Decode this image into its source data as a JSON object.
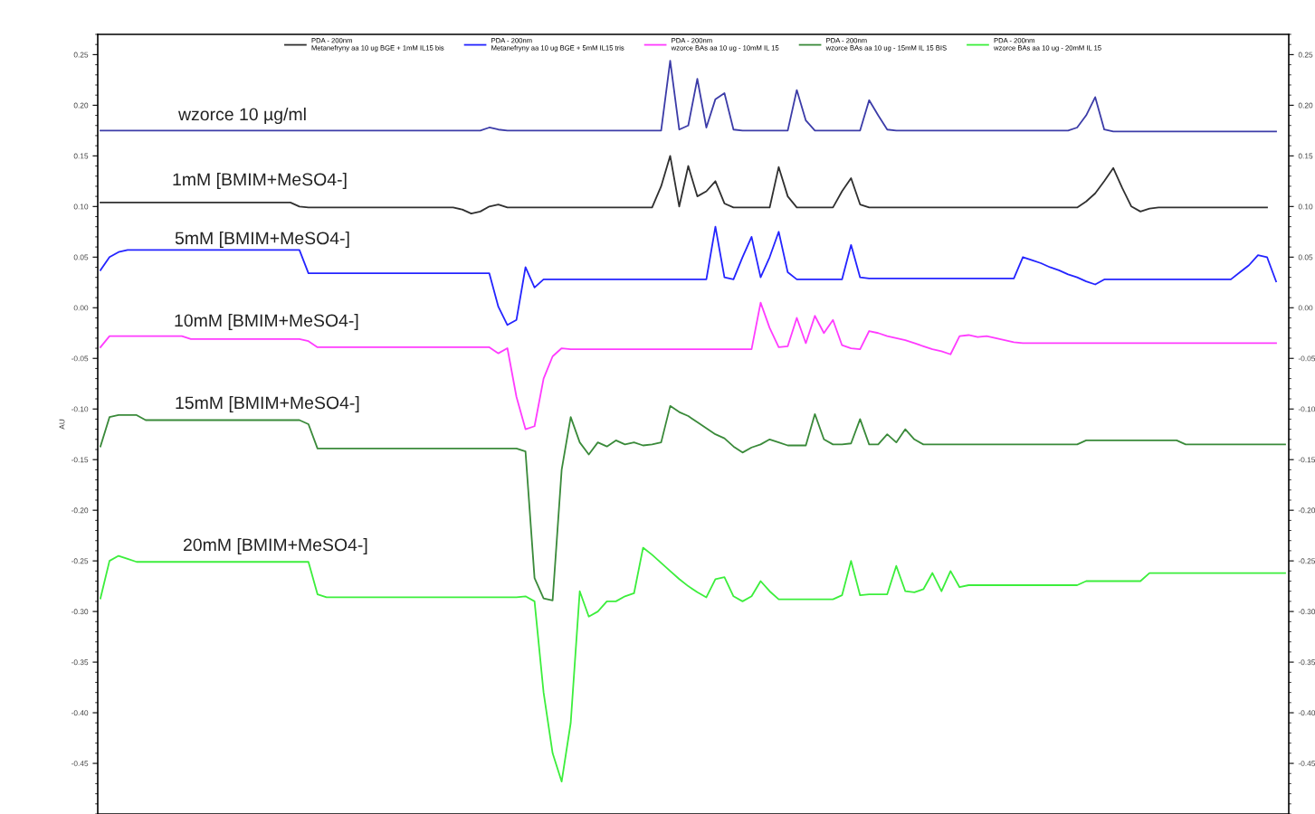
{
  "chart_data": {
    "type": "line",
    "ylabel": "AU",
    "legend": "top",
    "grid": false,
    "marker": "none",
    "line_style": "solid",
    "categories": [
      null,
      null,
      null,
      null,
      null,
      null,
      null,
      null,
      null,
      null,
      null,
      null,
      null,
      null,
      null,
      null,
      null,
      null,
      null,
      null,
      null,
      null,
      null,
      null,
      null,
      null,
      null,
      null,
      null,
      null,
      null,
      null,
      null,
      null,
      null,
      null,
      null,
      null,
      null,
      null,
      null,
      null,
      null,
      null,
      null,
      null,
      null,
      null,
      null,
      null,
      null,
      null,
      null,
      null,
      null,
      null,
      null,
      null,
      null,
      null,
      null,
      null,
      null,
      null,
      null,
      null,
      null,
      null,
      null,
      null,
      null,
      null,
      null,
      null,
      null,
      null,
      null,
      null,
      null,
      null,
      null,
      null,
      null,
      null,
      null,
      null,
      null,
      null,
      null,
      null,
      null,
      null,
      null,
      null,
      null,
      null,
      null,
      null,
      null,
      null,
      null,
      null,
      null,
      null,
      null,
      null,
      null,
      null,
      null,
      null,
      null,
      null,
      null,
      null,
      null,
      null,
      null,
      null,
      null,
      null,
      null,
      null,
      null,
      null,
      null,
      null,
      null,
      null,
      null,
      null,
      null,
      null
    ],
    "ylim": [
      -0.5,
      0.27
    ],
    "yticks": [
      {
        "value": -0.45,
        "label": "-0.45"
      },
      {
        "value": -0.4,
        "label": "-0.40"
      },
      {
        "value": -0.35,
        "label": "-0.35"
      },
      {
        "value": -0.3,
        "label": "-0.30"
      },
      {
        "value": -0.25,
        "label": "-0.25"
      },
      {
        "value": -0.2,
        "label": "-0.20"
      },
      {
        "value": -0.15,
        "label": "-0.15"
      },
      {
        "value": -0.1,
        "label": "-0.10"
      },
      {
        "value": -0.05,
        "label": "-0.05"
      },
      {
        "value": 0,
        "label": "0.00"
      },
      {
        "value": 0.05,
        "label": "0.05"
      },
      {
        "value": 0.1,
        "label": "0.10"
      },
      {
        "value": 0.15,
        "label": "0.15"
      },
      {
        "value": 0.2,
        "label": "0.20"
      },
      {
        "value": 0.25,
        "label": "0.25"
      }
    ],
    "y2lim": [
      -0.5,
      0.27
    ],
    "y2ticks": [
      {
        "value": -0.45,
        "label": "-0.45"
      },
      {
        "value": -0.4,
        "label": "-0.40"
      },
      {
        "value": -0.35,
        "label": "-0.35"
      },
      {
        "value": -0.3,
        "label": "-0.30"
      },
      {
        "value": -0.25,
        "label": "-0.25"
      },
      {
        "value": -0.2,
        "label": "-0.20"
      },
      {
        "value": -0.15,
        "label": "-0.15"
      },
      {
        "value": -0.1,
        "label": "-0.10"
      },
      {
        "value": -0.05,
        "label": "-0.05"
      },
      {
        "value": 0,
        "label": "0.00"
      },
      {
        "value": 0.05,
        "label": "0.05"
      },
      {
        "value": 0.1,
        "label": "0.10"
      },
      {
        "value": 0.15,
        "label": "0.15"
      },
      {
        "value": 0.2,
        "label": "0.20"
      },
      {
        "value": 0.25,
        "label": "0.25"
      }
    ],
    "annotations": [
      "wzorce 10 µg/ml",
      "1mM [BMIM+MeSO4-]",
      "5mM [BMIM+MeSO4-]",
      "10mM [BMIM+MeSO4-]",
      "15mM [BMIM+MeSO4-]",
      "20mM [BMIM+MeSO4-]"
    ],
    "series": [
      {
        "color": "#3c3ca8",
        "values": [
          0.175,
          0.175,
          0.175,
          0.175,
          0.175,
          0.175,
          0.175,
          0.175,
          0.175,
          0.175,
          0.175,
          0.175,
          0.175,
          0.175,
          0.175,
          0.175,
          0.175,
          0.175,
          0.175,
          0.175,
          0.175,
          0.175,
          0.175,
          0.175,
          0.175,
          0.175,
          0.175,
          0.175,
          0.175,
          0.175,
          0.175,
          0.175,
          0.175,
          0.175,
          0.175,
          0.175,
          0.175,
          0.175,
          0.175,
          0.175,
          0.175,
          0.175,
          0.175,
          0.178,
          0.176,
          0.175,
          0.175,
          0.175,
          0.175,
          0.175,
          0.175,
          0.175,
          0.175,
          0.175,
          0.175,
          0.175,
          0.175,
          0.175,
          0.175,
          0.175,
          0.175,
          0.175,
          0.175,
          0.244,
          0.176,
          0.18,
          0.226,
          0.178,
          0.206,
          0.212,
          0.176,
          0.175,
          0.175,
          0.175,
          0.175,
          0.175,
          0.175,
          0.215,
          0.185,
          0.175,
          0.175,
          0.175,
          0.175,
          0.175,
          0.175,
          0.205,
          0.19,
          0.176,
          0.175,
          0.175,
          0.175,
          0.175,
          0.175,
          0.175,
          0.175,
          0.175,
          0.175,
          0.175,
          0.175,
          0.175,
          0.175,
          0.175,
          0.175,
          0.175,
          0.175,
          0.175,
          0.175,
          0.175,
          0.178,
          0.19,
          0.208,
          0.176,
          0.174,
          0.174,
          0.174,
          0.174,
          0.174,
          0.174,
          0.174,
          0.174,
          0.174,
          0.174,
          0.174,
          0.174,
          0.174,
          0.174,
          0.174,
          0.174,
          0.174,
          0.174,
          0.174,
          null
        ]
      },
      {
        "name": "PDA - 200nm\nMetanefryny aa 10 ug BGE + 1mM IL15 bis",
        "color": "#303030",
        "values": [
          0.104,
          0.104,
          0.104,
          0.104,
          0.104,
          0.104,
          0.104,
          0.104,
          0.104,
          0.104,
          0.104,
          0.104,
          0.104,
          0.104,
          0.104,
          0.104,
          0.104,
          0.104,
          0.104,
          0.104,
          0.104,
          0.104,
          0.1,
          0.099,
          0.099,
          0.099,
          0.099,
          0.099,
          0.099,
          0.099,
          0.099,
          0.099,
          0.099,
          0.099,
          0.099,
          0.099,
          0.099,
          0.099,
          0.099,
          0.099,
          0.097,
          0.093,
          0.095,
          0.1,
          0.102,
          0.099,
          0.099,
          0.099,
          0.099,
          0.099,
          0.099,
          0.099,
          0.099,
          0.099,
          0.099,
          0.099,
          0.099,
          0.099,
          0.099,
          0.099,
          0.099,
          0.099,
          0.12,
          0.15,
          0.1,
          0.14,
          0.11,
          0.115,
          0.125,
          0.103,
          0.099,
          0.099,
          0.099,
          0.099,
          0.099,
          0.139,
          0.11,
          0.099,
          0.099,
          0.099,
          0.099,
          0.099,
          0.115,
          0.128,
          0.102,
          0.099,
          0.099,
          0.099,
          0.099,
          0.099,
          0.099,
          0.099,
          0.099,
          0.099,
          0.099,
          0.099,
          0.099,
          0.099,
          0.099,
          0.099,
          0.099,
          0.099,
          0.099,
          0.099,
          0.099,
          0.099,
          0.099,
          0.099,
          0.099,
          0.105,
          0.113,
          0.125,
          0.138,
          0.118,
          0.1,
          0.095,
          0.098,
          0.099,
          0.099,
          0.099,
          0.099,
          0.099,
          0.099,
          0.099,
          0.099,
          0.099,
          0.099,
          0.099,
          0.099,
          0.099,
          null,
          null
        ]
      },
      {
        "name": "PDA - 200nm\nMetanefryny aa 10 ug BGE + 5mM IL15 tris",
        "color": "#2424ff",
        "values": [
          0.037,
          0.05,
          0.055,
          0.057,
          0.057,
          0.057,
          0.057,
          0.057,
          0.057,
          0.057,
          0.057,
          0.057,
          0.057,
          0.057,
          0.057,
          0.057,
          0.057,
          0.057,
          0.057,
          0.057,
          0.057,
          0.057,
          0.057,
          0.034,
          0.034,
          0.034,
          0.034,
          0.034,
          0.034,
          0.034,
          0.034,
          0.034,
          0.034,
          0.034,
          0.034,
          0.034,
          0.034,
          0.034,
          0.034,
          0.034,
          0.034,
          0.034,
          0.034,
          0.034,
          0.001,
          -0.017,
          -0.012,
          0.04,
          0.02,
          0.028,
          0.028,
          0.028,
          0.028,
          0.028,
          0.028,
          0.028,
          0.028,
          0.028,
          0.028,
          0.028,
          0.028,
          0.028,
          0.028,
          0.028,
          0.028,
          0.028,
          0.028,
          0.028,
          0.08,
          0.03,
          0.028,
          0.05,
          0.07,
          0.03,
          0.05,
          0.075,
          0.035,
          0.028,
          0.028,
          0.028,
          0.028,
          0.028,
          0.028,
          0.062,
          0.03,
          0.029,
          0.029,
          0.029,
          0.029,
          0.029,
          0.029,
          0.029,
          0.029,
          0.029,
          0.029,
          0.029,
          0.029,
          0.029,
          0.029,
          0.029,
          0.029,
          0.029,
          0.05,
          0.047,
          0.044,
          0.04,
          0.037,
          0.033,
          0.03,
          0.026,
          0.023,
          0.028,
          0.028,
          0.028,
          0.028,
          0.028,
          0.028,
          0.028,
          0.028,
          0.028,
          0.028,
          0.028,
          0.028,
          0.028,
          0.028,
          0.028,
          0.035,
          0.042,
          0.052,
          0.05,
          0.026,
          null
        ]
      },
      {
        "name": "PDA - 200nm\nwzorce BAs aa 10 ug - 10mM IL 15",
        "color": "#ff3cff",
        "values": [
          -0.039,
          -0.028,
          -0.028,
          -0.028,
          -0.028,
          -0.028,
          -0.028,
          -0.028,
          -0.028,
          -0.028,
          -0.031,
          -0.031,
          -0.031,
          -0.031,
          -0.031,
          -0.031,
          -0.031,
          -0.031,
          -0.031,
          -0.031,
          -0.031,
          -0.031,
          -0.031,
          -0.033,
          -0.039,
          -0.039,
          -0.039,
          -0.039,
          -0.039,
          -0.039,
          -0.039,
          -0.039,
          -0.039,
          -0.039,
          -0.039,
          -0.039,
          -0.039,
          -0.039,
          -0.039,
          -0.039,
          -0.039,
          -0.039,
          -0.039,
          -0.039,
          -0.045,
          -0.04,
          -0.088,
          -0.12,
          -0.117,
          -0.07,
          -0.048,
          -0.04,
          -0.041,
          -0.041,
          -0.041,
          -0.041,
          -0.041,
          -0.041,
          -0.041,
          -0.041,
          -0.041,
          -0.041,
          -0.041,
          -0.041,
          -0.041,
          -0.041,
          -0.041,
          -0.041,
          -0.041,
          -0.041,
          -0.041,
          -0.041,
          -0.041,
          0.005,
          -0.02,
          -0.039,
          -0.038,
          -0.01,
          -0.035,
          -0.008,
          -0.025,
          -0.012,
          -0.037,
          -0.04,
          -0.041,
          -0.023,
          -0.025,
          -0.028,
          -0.03,
          -0.032,
          -0.035,
          -0.038,
          -0.041,
          -0.043,
          -0.046,
          -0.028,
          -0.027,
          -0.029,
          -0.028,
          -0.03,
          -0.032,
          -0.034,
          -0.035,
          -0.035,
          -0.035,
          -0.035,
          -0.035,
          -0.035,
          -0.035,
          -0.035,
          -0.035,
          -0.035,
          -0.035,
          -0.035,
          -0.035,
          -0.035,
          -0.035,
          -0.035,
          -0.035,
          -0.035,
          -0.035,
          -0.035,
          -0.035,
          -0.035,
          -0.035,
          -0.035,
          -0.035,
          -0.035,
          -0.035,
          -0.035,
          -0.035,
          null
        ]
      },
      {
        "name": "PDA - 200nm\nwzorce BAs aa 10 ug - 15mM IL 15 BIS",
        "color": "#3a8a3a",
        "values": [
          -0.137,
          -0.108,
          -0.106,
          -0.106,
          -0.106,
          -0.111,
          -0.111,
          -0.111,
          -0.111,
          -0.111,
          -0.111,
          -0.111,
          -0.111,
          -0.111,
          -0.111,
          -0.111,
          -0.111,
          -0.111,
          -0.111,
          -0.111,
          -0.111,
          -0.111,
          -0.111,
          -0.115,
          -0.139,
          -0.139,
          -0.139,
          -0.139,
          -0.139,
          -0.139,
          -0.139,
          -0.139,
          -0.139,
          -0.139,
          -0.139,
          -0.139,
          -0.139,
          -0.139,
          -0.139,
          -0.139,
          -0.139,
          -0.139,
          -0.139,
          -0.139,
          -0.139,
          -0.139,
          -0.139,
          -0.142,
          -0.267,
          -0.287,
          -0.289,
          -0.16,
          -0.108,
          -0.133,
          -0.145,
          -0.133,
          -0.137,
          -0.131,
          -0.135,
          -0.133,
          -0.136,
          -0.135,
          -0.133,
          -0.097,
          -0.103,
          -0.107,
          -0.113,
          -0.119,
          -0.125,
          -0.129,
          -0.137,
          -0.143,
          -0.138,
          -0.135,
          -0.13,
          -0.133,
          -0.136,
          -0.136,
          -0.136,
          -0.105,
          -0.13,
          -0.135,
          -0.135,
          -0.134,
          -0.11,
          -0.135,
          -0.135,
          -0.125,
          -0.133,
          -0.12,
          -0.13,
          -0.135,
          -0.135,
          -0.135,
          -0.135,
          -0.135,
          -0.135,
          -0.135,
          -0.135,
          -0.135,
          -0.135,
          -0.135,
          -0.135,
          -0.135,
          -0.135,
          -0.135,
          -0.135,
          -0.135,
          -0.135,
          -0.131,
          -0.131,
          -0.131,
          -0.131,
          -0.131,
          -0.131,
          -0.131,
          -0.131,
          -0.131,
          -0.131,
          -0.131,
          -0.135,
          -0.135,
          -0.135,
          -0.135,
          -0.135,
          -0.135,
          -0.135,
          -0.135,
          -0.135,
          -0.135,
          -0.135,
          -0.135
        ]
      },
      {
        "name": "PDA - 200nm\nwzorce BAs aa 10 ug - 20mM IL 15",
        "color": "#3cee3c",
        "values": [
          -0.287,
          -0.25,
          -0.245,
          -0.248,
          -0.251,
          -0.251,
          -0.251,
          -0.251,
          -0.251,
          -0.251,
          -0.251,
          -0.251,
          -0.251,
          -0.251,
          -0.251,
          -0.251,
          -0.251,
          -0.251,
          -0.251,
          -0.251,
          -0.251,
          -0.251,
          -0.251,
          -0.251,
          -0.283,
          -0.286,
          -0.286,
          -0.286,
          -0.286,
          -0.286,
          -0.286,
          -0.286,
          -0.286,
          -0.286,
          -0.286,
          -0.286,
          -0.286,
          -0.286,
          -0.286,
          -0.286,
          -0.286,
          -0.286,
          -0.286,
          -0.286,
          -0.286,
          -0.286,
          -0.286,
          -0.285,
          -0.29,
          -0.38,
          -0.44,
          -0.468,
          -0.41,
          -0.28,
          -0.305,
          -0.3,
          -0.29,
          -0.29,
          -0.285,
          -0.282,
          -0.237,
          -0.244,
          -0.252,
          -0.26,
          -0.268,
          -0.275,
          -0.281,
          -0.286,
          -0.268,
          -0.266,
          -0.285,
          -0.29,
          -0.285,
          -0.27,
          -0.28,
          -0.288,
          -0.288,
          -0.288,
          -0.288,
          -0.288,
          -0.288,
          -0.288,
          -0.284,
          -0.25,
          -0.284,
          -0.283,
          -0.283,
          -0.283,
          -0.255,
          -0.28,
          -0.281,
          -0.278,
          -0.262,
          -0.28,
          -0.26,
          -0.276,
          -0.274,
          -0.274,
          -0.274,
          -0.274,
          -0.274,
          -0.274,
          -0.274,
          -0.274,
          -0.274,
          -0.274,
          -0.274,
          -0.274,
          -0.274,
          -0.27,
          -0.27,
          -0.27,
          -0.27,
          -0.27,
          -0.27,
          -0.27,
          -0.262,
          -0.262,
          -0.262,
          -0.262,
          -0.262,
          -0.262,
          -0.262,
          -0.262,
          -0.262,
          -0.262,
          -0.262,
          -0.262,
          -0.262,
          -0.262,
          -0.262,
          -0.262
        ]
      }
    ]
  }
}
